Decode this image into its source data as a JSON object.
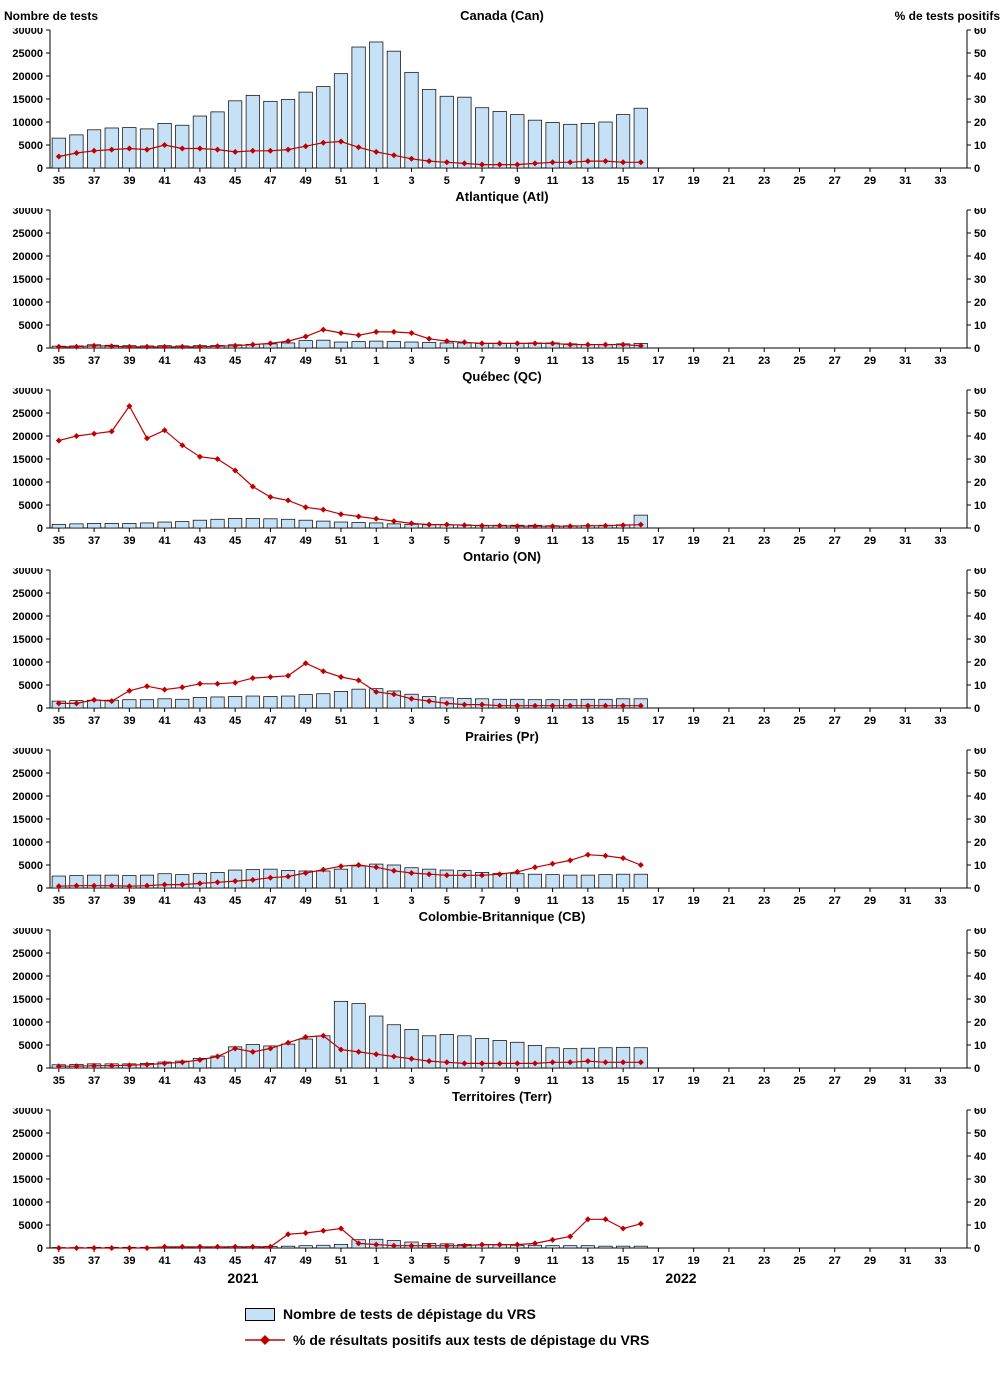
{
  "page": {
    "left_axis_label": "Nombre de tests",
    "right_axis_label": "% de tests positifs",
    "x_axis_label": "Semaine de surveillance",
    "year_left": "2021",
    "year_right": "2022"
  },
  "legend": {
    "tests": "Nombre de tests de dépistage du VRS",
    "positivity": "% de résultats positifs aux tests de dépistage du VRS"
  },
  "colors": {
    "bar_fill": "#C6E0F5",
    "bar_border": "#000000",
    "line": "#C00000"
  },
  "chart_data": {
    "type": "bar+line multi-panel",
    "xlabel": "Semaine de surveillance",
    "x_categories_weeks": [
      "35",
      "36",
      "37",
      "38",
      "39",
      "40",
      "41",
      "42",
      "43",
      "44",
      "45",
      "46",
      "47",
      "48",
      "49",
      "50",
      "51",
      "52",
      "1",
      "2",
      "3",
      "4",
      "5",
      "6",
      "7",
      "8",
      "9",
      "10",
      "11",
      "12",
      "13",
      "14",
      "15",
      "16",
      "17",
      "18",
      "19",
      "20",
      "21",
      "22",
      "23",
      "24",
      "25",
      "26",
      "27",
      "28",
      "29",
      "30",
      "31",
      "32",
      "33",
      "34"
    ],
    "x_tick_labels": [
      "35",
      "37",
      "39",
      "41",
      "43",
      "45",
      "47",
      "49",
      "51",
      "1",
      "3",
      "5",
      "7",
      "9",
      "11",
      "13",
      "15",
      "17",
      "19",
      "21",
      "23",
      "25",
      "27",
      "29",
      "31",
      "33"
    ],
    "data_weeks": [
      "35",
      "36",
      "37",
      "38",
      "39",
      "40",
      "41",
      "42",
      "43",
      "44",
      "45",
      "46",
      "47",
      "48",
      "49",
      "50",
      "51",
      "52",
      "1",
      "2",
      "3",
      "4",
      "5",
      "6",
      "7",
      "8",
      "9",
      "10",
      "11",
      "12",
      "13",
      "14",
      "15",
      "16"
    ],
    "left_axis": {
      "label": "Nombre de tests",
      "min": 0,
      "max": 30000,
      "step": 5000
    },
    "right_axis": {
      "label": "% de tests positifs",
      "min": 0,
      "max": 60,
      "step": 10
    },
    "panels": [
      {
        "title": "Canada (Can)",
        "bars": [
          6500,
          7200,
          8300,
          8700,
          8800,
          8500,
          9700,
          9300,
          11300,
          12200,
          14600,
          15800,
          14500,
          14900,
          16500,
          17700,
          20500,
          26300,
          27400,
          25400,
          20800,
          17100,
          15600,
          15400,
          13100,
          12300,
          11600,
          10400,
          9900,
          9500,
          9700,
          10000,
          11600,
          13000
        ],
        "line_pct": [
          5,
          6.5,
          7.5,
          8,
          8.5,
          8,
          10,
          8.5,
          8.5,
          8,
          7,
          7.5,
          7.5,
          8,
          9.5,
          11,
          11.5,
          9,
          7,
          5.5,
          4,
          3,
          2.5,
          2,
          1.5,
          1.5,
          1.5,
          2,
          2.5,
          2.5,
          3,
          3,
          2.5,
          2.5
        ]
      },
      {
        "title": "Atlantique (Atl)",
        "bars": [
          400,
          450,
          700,
          600,
          500,
          450,
          500,
          450,
          500,
          550,
          700,
          800,
          900,
          1100,
          1600,
          1700,
          1300,
          1400,
          1500,
          1400,
          1300,
          1200,
          1100,
          1100,
          1000,
          1000,
          1000,
          1100,
          1100,
          900,
          800,
          800,
          900,
          1000
        ],
        "line_pct": [
          0.5,
          0.5,
          1,
          0.8,
          0.5,
          0.5,
          0.5,
          0.5,
          0.5,
          0.8,
          1,
          1.5,
          2,
          3,
          5,
          8,
          6.5,
          5.5,
          7,
          7,
          6.5,
          4,
          3,
          2.5,
          2,
          2,
          2,
          2,
          2,
          1.5,
          1.5,
          1.5,
          1.5,
          1
        ]
      },
      {
        "title": "Québec (QC)",
        "bars": [
          800,
          900,
          1000,
          1000,
          1000,
          1100,
          1300,
          1400,
          1700,
          1900,
          2100,
          2100,
          2000,
          1900,
          1700,
          1500,
          1300,
          1200,
          1100,
          900,
          800,
          700,
          700,
          700,
          600,
          600,
          600,
          600,
          500,
          500,
          500,
          600,
          700,
          2800
        ],
        "line_pct": [
          38,
          40,
          41,
          42,
          53,
          39,
          42.5,
          36,
          31,
          30,
          25,
          18,
          13.5,
          12,
          9,
          8,
          6,
          5,
          4,
          3,
          2,
          1.5,
          1.5,
          1.2,
          1,
          1,
          0.8,
          0.8,
          0.8,
          0.8,
          1,
          1,
          1.2,
          1.5
        ]
      },
      {
        "title": "Ontario (ON)",
        "bars": [
          1500,
          1600,
          1700,
          1700,
          1800,
          1800,
          2000,
          1900,
          2300,
          2400,
          2500,
          2600,
          2500,
          2600,
          2900,
          3100,
          3600,
          4100,
          4200,
          3700,
          3000,
          2500,
          2200,
          2100,
          2000,
          1900,
          1900,
          1800,
          1800,
          1800,
          1900,
          1900,
          2000,
          2000
        ],
        "line_pct": [
          2,
          2,
          3.5,
          3,
          7.5,
          9.5,
          8,
          9,
          10.5,
          10.5,
          11,
          13,
          13.5,
          14,
          19.5,
          16,
          13.5,
          12,
          7,
          6,
          4,
          3,
          2,
          1.5,
          1.5,
          1,
          1,
          1,
          1,
          1,
          1,
          1,
          1,
          1
        ]
      },
      {
        "title": "Prairies (Pr)",
        "bars": [
          2600,
          2700,
          2800,
          2800,
          2700,
          2800,
          3100,
          2900,
          3200,
          3400,
          3900,
          4000,
          4100,
          3800,
          3700,
          3700,
          4100,
          4800,
          5200,
          5000,
          4400,
          4100,
          3900,
          3800,
          3400,
          3200,
          3100,
          3000,
          2900,
          2800,
          2800,
          2900,
          3000,
          3000
        ],
        "line_pct": [
          0.8,
          1,
          1,
          1,
          0.8,
          1,
          1.5,
          1.5,
          2,
          2.5,
          3,
          3.5,
          4.5,
          5,
          6.5,
          8,
          9.5,
          10,
          9,
          7.5,
          6.5,
          6,
          5.5,
          5.5,
          5.5,
          6,
          7,
          9,
          10.5,
          12,
          14.5,
          14,
          13,
          10
        ]
      },
      {
        "title": "Colombie-Britannique (CB)",
        "bars": [
          700,
          800,
          900,
          900,
          900,
          1000,
          1300,
          1500,
          2100,
          2600,
          4600,
          5100,
          4800,
          5200,
          6300,
          7000,
          14500,
          14000,
          11300,
          9400,
          8400,
          7000,
          7300,
          7000,
          6400,
          6000,
          5600,
          4900,
          4400,
          4200,
          4300,
          4400,
          4500,
          4400
        ],
        "line_pct": [
          0.8,
          0.8,
          1,
          1,
          1.2,
          1.5,
          2,
          2.5,
          3.5,
          5,
          8.5,
          7,
          8.5,
          11,
          13.5,
          14,
          8,
          7,
          6,
          5,
          4,
          3,
          2.5,
          2,
          2,
          2,
          2,
          2,
          2.5,
          2.5,
          3,
          2.5,
          2.5,
          2.5
        ]
      },
      {
        "title": "Territoires (Terr)",
        "bars": [
          100,
          100,
          150,
          150,
          150,
          150,
          200,
          200,
          250,
          250,
          300,
          300,
          350,
          400,
          500,
          600,
          800,
          1800,
          1900,
          1600,
          1300,
          1000,
          900,
          800,
          700,
          700,
          600,
          600,
          500,
          500,
          500,
          400,
          400,
          400
        ],
        "line_pct": [
          0,
          0,
          0,
          0,
          0,
          0,
          0.5,
          0.5,
          0.5,
          0.5,
          0.5,
          0.5,
          0.5,
          6,
          6.5,
          7.5,
          8.5,
          2,
          1.5,
          1,
          1,
          1,
          1,
          1,
          1.5,
          1.5,
          1.5,
          2,
          3.5,
          5,
          12.5,
          12.5,
          8.5,
          10.5
        ]
      }
    ]
  }
}
